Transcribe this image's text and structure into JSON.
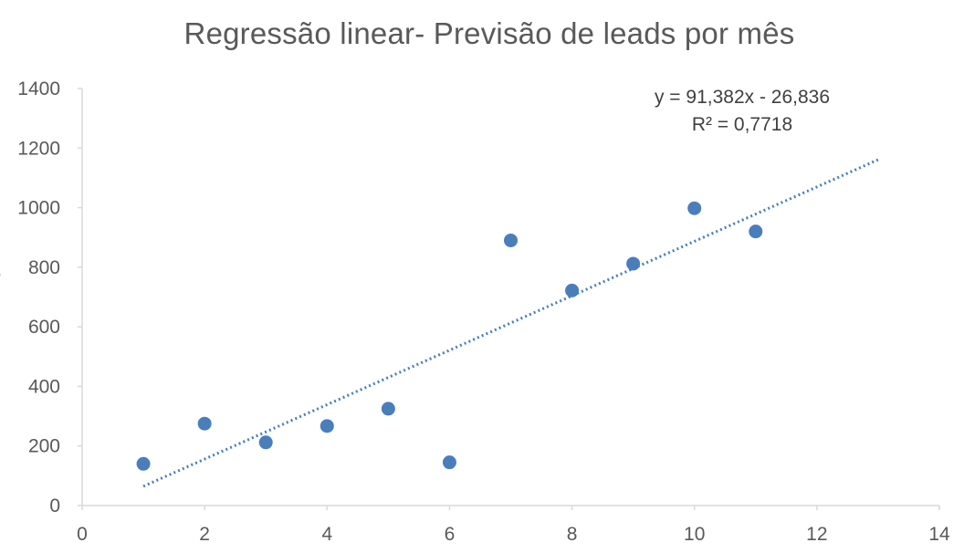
{
  "chart_data": {
    "type": "scatter",
    "title": "Regressão linear- Previsão de leads por mês",
    "xlabel": "",
    "ylabel": "",
    "xlim": [
      0,
      14
    ],
    "ylim": [
      0,
      1400
    ],
    "x_ticks": [
      0,
      2,
      4,
      6,
      8,
      10,
      12,
      14
    ],
    "y_ticks": [
      0,
      200,
      400,
      600,
      800,
      1000,
      1200,
      1400
    ],
    "grid": false,
    "legend": "none",
    "series": [
      {
        "x": [
          1,
          2,
          3,
          4,
          5,
          6,
          7,
          8,
          9,
          10,
          11
        ],
        "y": [
          140,
          275,
          212,
          267,
          325,
          145,
          890,
          722,
          812,
          998,
          920
        ],
        "color": "#4a7ebb"
      }
    ],
    "trendline": {
      "type": "linear",
      "slope": 91.382,
      "intercept": -26.836,
      "x_range": [
        1,
        13
      ],
      "style": "dotted",
      "color": "#4a7ebb",
      "equation_label": "y = 91,382x - 26,836",
      "r_squared_label": "R² = 0,7718"
    }
  }
}
